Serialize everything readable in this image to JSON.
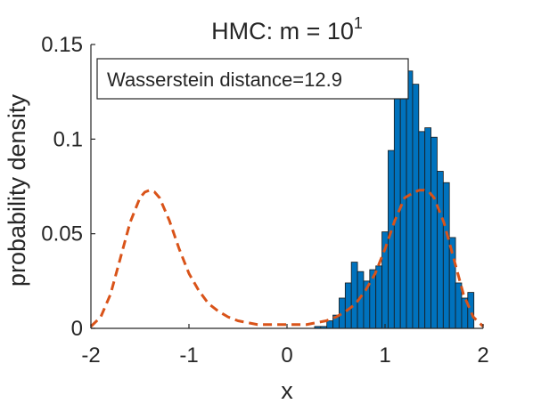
{
  "chart_data": {
    "type": "bar",
    "title": {
      "main": "HMC: m = 10",
      "superscript": "1"
    },
    "xlabel": "x",
    "ylabel": "probability density",
    "xlim": [
      -2,
      2
    ],
    "ylim": [
      0,
      0.15
    ],
    "xticks": [
      -2,
      -1,
      0,
      1,
      2
    ],
    "xtick_labels": [
      "-2",
      "-1",
      "0",
      "1",
      "2"
    ],
    "yticks": [
      0,
      0.05,
      0.1,
      0.15
    ],
    "ytick_labels": [
      "0",
      "0.05",
      "0.1",
      "0.15"
    ],
    "annotation": "Wasserstein distance=12.9",
    "grid": false,
    "colors": {
      "bars": "#0072BD",
      "bar_edge": "#1a1a1a",
      "density_line": "#D95319",
      "axis": "#262626"
    },
    "histogram": {
      "bin_width": 0.0625,
      "bin_centers": [
        0.3125,
        0.375,
        0.4375,
        0.5,
        0.5625,
        0.625,
        0.6875,
        0.75,
        0.8125,
        0.875,
        0.9375,
        1.0,
        1.0625,
        1.125,
        1.1875,
        1.25,
        1.3125,
        1.375,
        1.4375,
        1.5,
        1.5625,
        1.625,
        1.6875,
        1.75,
        1.8125,
        1.875
      ],
      "values": [
        0.001,
        0.001,
        0.004,
        0.007,
        0.016,
        0.024,
        0.035,
        0.03,
        0.025,
        0.031,
        0.033,
        0.051,
        0.094,
        0.122,
        0.124,
        0.136,
        0.129,
        0.104,
        0.106,
        0.101,
        0.083,
        0.077,
        0.048,
        0.024,
        0.016,
        0.019
      ]
    },
    "density_curve": {
      "style": "dashed",
      "x": [
        -2.0,
        -1.9,
        -1.8,
        -1.7,
        -1.6,
        -1.5,
        -1.45,
        -1.4,
        -1.35,
        -1.3,
        -1.2,
        -1.1,
        -1.0,
        -0.9,
        -0.8,
        -0.7,
        -0.6,
        -0.5,
        -0.4,
        -0.3,
        -0.2,
        -0.1,
        0.0,
        0.1,
        0.2,
        0.3,
        0.4,
        0.5,
        0.6,
        0.7,
        0.8,
        0.9,
        1.0,
        1.1,
        1.2,
        1.3,
        1.35,
        1.4,
        1.45,
        1.5,
        1.6,
        1.7,
        1.8,
        1.9,
        2.0
      ],
      "y": [
        0.001,
        0.006,
        0.018,
        0.037,
        0.056,
        0.069,
        0.072,
        0.073,
        0.072,
        0.069,
        0.057,
        0.042,
        0.029,
        0.02,
        0.013,
        0.009,
        0.006,
        0.004,
        0.003,
        0.002,
        0.002,
        0.002,
        0.002,
        0.002,
        0.002,
        0.003,
        0.004,
        0.006,
        0.009,
        0.013,
        0.02,
        0.029,
        0.042,
        0.057,
        0.069,
        0.072,
        0.073,
        0.073,
        0.072,
        0.069,
        0.056,
        0.037,
        0.018,
        0.006,
        0.001
      ]
    }
  }
}
